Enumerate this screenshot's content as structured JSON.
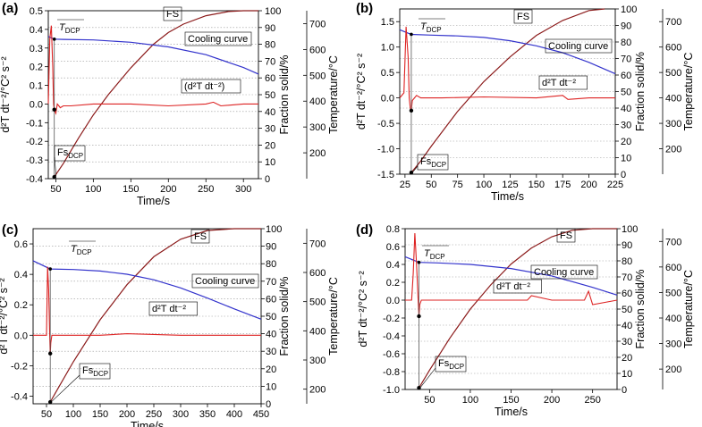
{
  "chart_data": [
    {
      "type": "line",
      "panel_label": "(a)",
      "xlabel": "Time/s",
      "ylabel_left": "d²T dt⁻²/°C² s⁻²",
      "ylabel_fs": "Fraction solid/%",
      "ylabel_temp": "Temperature/°C",
      "xlim": [
        40,
        320
      ],
      "xticks": [
        50,
        100,
        150,
        200,
        250,
        300
      ],
      "ylim_left": [
        -0.4,
        0.5
      ],
      "yticks_left": [
        -0.4,
        -0.3,
        -0.2,
        -0.1,
        0.0,
        0.1,
        0.2,
        0.3,
        0.4,
        0.5
      ],
      "ylim_fs": [
        0,
        100
      ],
      "yticks_fs": [
        0,
        10,
        20,
        30,
        40,
        50,
        60,
        70,
        80,
        90,
        100
      ],
      "ylim_temp": [
        100,
        750
      ],
      "yticks_temp": [
        200,
        300,
        400,
        500,
        600,
        700
      ],
      "grid": "horizontal dotted",
      "tdcp_x": 48,
      "series": [
        {
          "name": "FS",
          "color": "#8b1a1a",
          "axis": "fs",
          "x": [
            48,
            60,
            80,
            100,
            120,
            150,
            180,
            200,
            220,
            250,
            280,
            300,
            320
          ],
          "y": [
            1,
            9,
            24,
            38,
            50,
            66,
            80,
            87,
            92,
            97,
            99.5,
            100,
            100
          ]
        },
        {
          "name": "Cooling curve",
          "color": "#3333cc",
          "axis": "temp",
          "x": [
            40,
            48,
            60,
            100,
            150,
            200,
            250,
            300,
            320
          ],
          "y": [
            650,
            640,
            639,
            637,
            628,
            610,
            580,
            530,
            505
          ]
        },
        {
          "name": "(d²T dt⁻²)",
          "color": "#dd2222",
          "axis": "left",
          "x": [
            40,
            42,
            44,
            46,
            47,
            48,
            50,
            52,
            54,
            56,
            60,
            70,
            100,
            150,
            200,
            250,
            260,
            270,
            300,
            320
          ],
          "y": [
            0.0,
            0.35,
            0.42,
            0.2,
            0.0,
            -0.03,
            -0.05,
            0.0,
            -0.01,
            -0.02,
            -0.01,
            -0.01,
            0.0,
            0.0,
            -0.01,
            0.0,
            0.01,
            -0.01,
            0.0,
            0.0
          ]
        }
      ],
      "annotations": [
        {
          "text": "T",
          "sub": "DCP"
        },
        {
          "text": "Fs",
          "sub": "DCP"
        },
        {
          "text": "FS"
        },
        {
          "text": "Cooling curve"
        },
        {
          "text": "(d²T dt⁻²)"
        }
      ]
    },
    {
      "type": "line",
      "panel_label": "(b)",
      "xlabel": "Time/s",
      "ylabel_left": "d²T dt⁻²/°C² s⁻²",
      "ylabel_fs": "Fraction solid/%",
      "ylabel_temp": "Temperature/°C",
      "xlim": [
        20,
        225
      ],
      "xticks": [
        25,
        50,
        75,
        100,
        125,
        150,
        175,
        200,
        225
      ],
      "ylim_left": [
        -1.5,
        1.75
      ],
      "yticks_left": [
        -1.5,
        -1.0,
        -0.5,
        0.0,
        0.5,
        1.0,
        1.5
      ],
      "ylim_fs": [
        0,
        100
      ],
      "yticks_fs": [
        0,
        10,
        20,
        30,
        40,
        50,
        60,
        70,
        80,
        90,
        100
      ],
      "ylim_temp": [
        100,
        750
      ],
      "yticks_temp": [
        200,
        300,
        400,
        500,
        600,
        700
      ],
      "grid": "horizontal dotted",
      "tdcp_x": 31,
      "series": [
        {
          "name": "FS",
          "color": "#8b1a1a",
          "axis": "fs",
          "x": [
            31,
            40,
            50,
            75,
            100,
            125,
            150,
            175,
            200,
            215
          ],
          "y": [
            1,
            8,
            17,
            38,
            56,
            71,
            84,
            93,
            99,
            100
          ]
        },
        {
          "name": "Cooling curve",
          "color": "#3333cc",
          "axis": "temp",
          "x": [
            20,
            31,
            50,
            75,
            100,
            125,
            150,
            175,
            200,
            225
          ],
          "y": [
            668,
            650,
            647,
            644,
            638,
            625,
            605,
            578,
            540,
            495
          ]
        },
        {
          "name": "d²T dt⁻²",
          "color": "#dd2222",
          "axis": "left",
          "x": [
            20,
            24,
            26,
            28,
            29,
            30,
            31,
            32,
            34,
            36,
            40,
            60,
            100,
            150,
            175,
            180,
            200,
            225
          ],
          "y": [
            0.0,
            0.1,
            1.4,
            0.8,
            0.0,
            -0.2,
            -0.25,
            -0.05,
            0.0,
            0.05,
            0.0,
            0.0,
            0.02,
            0.0,
            0.05,
            -0.03,
            0.0,
            0.0
          ]
        }
      ],
      "annotations": [
        {
          "text": "T",
          "sub": "DCP"
        },
        {
          "text": "Fs",
          "sub": "DCP"
        },
        {
          "text": "FS"
        },
        {
          "text": "Cooling curve"
        },
        {
          "text": "d²T dt⁻²"
        }
      ]
    },
    {
      "type": "line",
      "panel_label": "(c)",
      "xlabel": "Time/s",
      "ylabel_left": "d²T dt⁻²/°C² s⁻²",
      "ylabel_fs": "Fraction solid/%",
      "ylabel_temp": "Temperature/°C",
      "xlim": [
        25,
        450
      ],
      "xticks": [
        50,
        100,
        150,
        200,
        250,
        300,
        350,
        400,
        450
      ],
      "ylim_left": [
        -0.45,
        0.7
      ],
      "yticks_left": [
        -0.4,
        -0.2,
        0.0,
        0.2,
        0.4,
        0.6
      ],
      "ylim_fs": [
        0,
        100
      ],
      "yticks_fs": [
        0,
        10,
        20,
        30,
        40,
        50,
        60,
        70,
        80,
        90,
        100
      ],
      "ylim_temp": [
        150,
        750
      ],
      "yticks_temp": [
        200,
        300,
        400,
        500,
        600,
        700
      ],
      "grid": "horizontal dotted",
      "tdcp_x": 57,
      "series": [
        {
          "name": "FS",
          "color": "#8b1a1a",
          "axis": "fs",
          "x": [
            57,
            70,
            100,
            150,
            200,
            250,
            300,
            350,
            400,
            450
          ],
          "y": [
            1,
            8,
            24,
            48,
            68,
            84,
            94,
            99,
            100,
            100
          ]
        },
        {
          "name": "Cooling curve",
          "color": "#3333cc",
          "axis": "temp",
          "x": [
            25,
            57,
            100,
            150,
            200,
            250,
            300,
            350,
            400,
            450
          ],
          "y": [
            640,
            612,
            610,
            605,
            594,
            575,
            547,
            512,
            475,
            440
          ]
        },
        {
          "name": "d²T dt⁻²",
          "color": "#dd2222",
          "axis": "left",
          "x": [
            25,
            50,
            52,
            54,
            56,
            57,
            58,
            60,
            65,
            80,
            150,
            200,
            300,
            400,
            450
          ],
          "y": [
            0.0,
            0.0,
            0.45,
            0.3,
            0.0,
            -0.12,
            -0.05,
            0.0,
            0.0,
            0.0,
            0.0,
            0.01,
            0.0,
            0.0,
            0.0
          ]
        }
      ],
      "annotations": [
        {
          "text": "T",
          "sub": "DCP"
        },
        {
          "text": "Fs",
          "sub": "DCP"
        },
        {
          "text": "FS"
        },
        {
          "text": "Cooling curve"
        },
        {
          "text": "d²T dt⁻²"
        }
      ]
    },
    {
      "type": "line",
      "panel_label": "(d)",
      "xlabel": "Time/s",
      "ylabel_left": "d²T dt⁻²/°C² s⁻²",
      "ylabel_fs": "Fraction solid/%",
      "ylabel_temp": "Temperature/°C",
      "xlim": [
        20,
        280
      ],
      "xticks": [
        50,
        100,
        150,
        200,
        250
      ],
      "ylim_left": [
        -1.0,
        0.8
      ],
      "yticks_left": [
        -1.0,
        -0.8,
        -0.6,
        -0.4,
        -0.2,
        0.0,
        0.2,
        0.4,
        0.6,
        0.8
      ],
      "ylim_fs": [
        0,
        100
      ],
      "yticks_fs": [
        0,
        10,
        20,
        30,
        40,
        50,
        60,
        70,
        80,
        90,
        100
      ],
      "ylim_temp": [
        120,
        750
      ],
      "yticks_temp": [
        200,
        300,
        400,
        500,
        600,
        700
      ],
      "grid": "horizontal dotted",
      "tdcp_x": 37,
      "series": [
        {
          "name": "FS",
          "color": "#8b1a1a",
          "axis": "fs",
          "x": [
            37,
            50,
            75,
            100,
            125,
            150,
            175,
            200,
            225,
            250,
            280
          ],
          "y": [
            1,
            12,
            32,
            50,
            65,
            78,
            88,
            95,
            99,
            100,
            100
          ]
        },
        {
          "name": "Cooling curve",
          "color": "#3333cc",
          "axis": "temp",
          "x": [
            20,
            37,
            60,
            100,
            150,
            200,
            250,
            280
          ],
          "y": [
            640,
            618,
            616,
            610,
            594,
            565,
            520,
            490
          ]
        },
        {
          "name": "d²T dt⁻²",
          "color": "#dd2222",
          "axis": "left",
          "x": [
            20,
            28,
            30,
            32,
            34,
            36,
            37,
            38,
            40,
            45,
            60,
            100,
            150,
            170,
            175,
            200,
            240,
            245,
            250,
            280
          ],
          "y": [
            0.0,
            0.0,
            0.3,
            0.75,
            0.4,
            0.0,
            -0.18,
            -0.05,
            0.0,
            0.0,
            0.0,
            0.0,
            0.0,
            0.0,
            0.05,
            0.0,
            0.0,
            0.1,
            -0.05,
            0.0
          ]
        }
      ],
      "annotations": [
        {
          "text": "T",
          "sub": "DCP"
        },
        {
          "text": "Fs",
          "sub": "DCP"
        },
        {
          "text": "FS"
        },
        {
          "text": "Cooling curve"
        },
        {
          "text": "d²T dt⁻²"
        }
      ]
    }
  ]
}
